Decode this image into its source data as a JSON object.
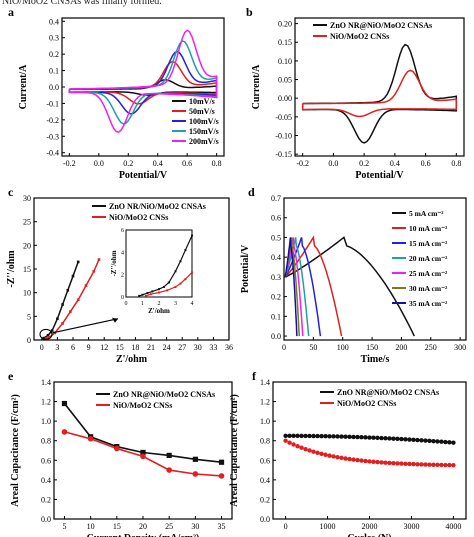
{
  "caption": "NiO/MoO2 CNSAs was finally formed.",
  "colors": {
    "black": "#111111",
    "red": "#e02020",
    "magenta": "#ee22ee",
    "teal": "#20a0a0",
    "green": "#22aa22",
    "blue": "#2222dd",
    "olive": "#7a7a1a"
  },
  "chart_data": [
    {
      "panel": "a",
      "type": "line",
      "xlabel": "Potential/V",
      "ylabel": "Current/A",
      "xlim": [
        -0.25,
        0.85
      ],
      "ylim": [
        -0.42,
        0.42
      ],
      "xticks": [
        "-0.2",
        "0.0",
        "0.2",
        "0.4",
        "0.6",
        "0.8"
      ],
      "yticks": [
        "-0.4",
        "-0.3",
        "-0.2",
        "-0.1",
        "0.0",
        "0.1",
        "0.2",
        "0.3",
        "0.4"
      ],
      "legend": "bottom-right",
      "series": [
        {
          "name": "10mV/s",
          "color": "#111111",
          "peak": 0.06,
          "amp": 0.02,
          "trough": -0.05,
          "vpk": 0.45,
          "vtr": 0.33
        },
        {
          "name": "50mV/s",
          "color": "#e02020",
          "peak": 0.17,
          "amp": 0.04,
          "trough": -0.1,
          "vpk": 0.5,
          "vtr": 0.27
        },
        {
          "name": "100mV/s",
          "color": "#2222dd",
          "peak": 0.23,
          "amp": 0.055,
          "trough": -0.16,
          "vpk": 0.53,
          "vtr": 0.22
        },
        {
          "name": "150mV/s",
          "color": "#20a0a0",
          "peak": 0.29,
          "amp": 0.07,
          "trough": -0.22,
          "vpk": 0.57,
          "vtr": 0.17
        },
        {
          "name": "200mV/s",
          "color": "#ee22ee",
          "peak": 0.35,
          "amp": 0.08,
          "trough": -0.27,
          "vpk": 0.6,
          "vtr": 0.13
        }
      ]
    },
    {
      "panel": "b",
      "type": "line",
      "xlabel": "Potential/V",
      "ylabel": "Current/A",
      "xlim": [
        -0.25,
        0.85
      ],
      "ylim": [
        -0.155,
        0.215
      ],
      "xticks": [
        "-0.2",
        "0.0",
        "0.2",
        "0.4",
        "0.6",
        "0.8"
      ],
      "yticks": [
        "-0.15",
        "-0.10",
        "-0.05",
        "0.00",
        "0.05",
        "0.10",
        "0.15",
        "0.20"
      ],
      "legend": "top-left",
      "series": [
        {
          "name": "ZnO NR@NiO/MoO2 CNSAs",
          "color": "#111111",
          "peak": 0.16,
          "amp": 0.02,
          "trough": -0.12,
          "vpk": 0.47,
          "vtr": 0.2
        },
        {
          "name": "NiO/MoO2 CNSs",
          "color": "#e02020",
          "peak": 0.09,
          "amp": 0.012,
          "trough": -0.05,
          "vpk": 0.5,
          "vtr": 0.17
        }
      ]
    },
    {
      "panel": "c",
      "type": "line",
      "xlabel": "Z'/ohm",
      "ylabel": "-Z''/ohm",
      "xlim": [
        -1.5,
        36
      ],
      "ylim": [
        0,
        30
      ],
      "xticks": [
        "0",
        "3",
        "6",
        "9",
        "12",
        "15",
        "18",
        "21",
        "24",
        "27",
        "30",
        "33",
        "36"
      ],
      "yticks": [
        "0",
        "5",
        "10",
        "15",
        "20",
        "25",
        "30"
      ],
      "legend": "top-right",
      "series": [
        {
          "name": "ZnO NR/NiO/MoO2 CNSAs",
          "color": "#111111",
          "x": [
            0.4,
            1.2,
            2.0,
            3.0,
            4.0,
            5.0,
            6.0,
            7.0
          ],
          "y": [
            0.4,
            1.0,
            2.0,
            4.5,
            7.5,
            10.5,
            13.5,
            16.5
          ]
        },
        {
          "name": "NiO/MoO2 CNSs",
          "color": "#e02020",
          "x": [
            0.8,
            1.5,
            2.5,
            4.0,
            5.5,
            7.0,
            8.5,
            10.0,
            11.0
          ],
          "y": [
            0.3,
            0.6,
            1.5,
            3.5,
            6.0,
            8.5,
            11.5,
            14.5,
            17.0
          ]
        }
      ],
      "inset": {
        "xlabel": "Z'/ohm",
        "ylabel": "-Z''/ohm",
        "xlim": [
          0,
          4
        ],
        "ylim": [
          0,
          6
        ],
        "xticks": [
          "0",
          "1",
          "2",
          "3",
          "4"
        ],
        "yticks": [
          "0",
          "2",
          "4",
          "6"
        ],
        "series": [
          {
            "color": "#111111",
            "x": [
              0.8,
              1.0,
              1.3,
              1.6,
              2.0,
              2.3,
              2.6,
              3.0,
              3.3,
              3.6,
              4.0
            ],
            "y": [
              0.1,
              0.2,
              0.35,
              0.5,
              0.7,
              0.9,
              1.3,
              2.3,
              3.2,
              4.2,
              5.5
            ]
          },
          {
            "color": "#e02020",
            "x": [
              1.2,
              1.5,
              2.0,
              2.5,
              3.0,
              3.3,
              3.6,
              4.0
            ],
            "y": [
              0.1,
              0.25,
              0.4,
              0.6,
              0.9,
              1.2,
              1.6,
              2.2
            ]
          }
        ]
      }
    },
    {
      "panel": "d",
      "type": "line",
      "xlabel": "Time/s",
      "ylabel": "Potential/V",
      "xlim": [
        0,
        310
      ],
      "ylim": [
        -0.02,
        0.7
      ],
      "xticks": [
        "0",
        "50",
        "100",
        "150",
        "200",
        "250",
        "300"
      ],
      "yticks": [
        "0.0",
        "0.1",
        "0.2",
        "0.3",
        "0.4",
        "0.5",
        "0.6",
        "0.7"
      ],
      "legend": "right",
      "series": [
        {
          "name": "5 mA cm⁻²",
          "color": "#111111",
          "tc": 100,
          "td": 120
        },
        {
          "name": "10 mA cm⁻²",
          "color": "#e02020",
          "tc": 48,
          "td": 48
        },
        {
          "name": "15 mA cm⁻²",
          "color": "#2222dd",
          "tc": 28,
          "td": 32
        },
        {
          "name": "20 mA cm⁻²",
          "color": "#20a0a0",
          "tc": 18,
          "td": 22
        },
        {
          "name": "25 mA cm⁻²",
          "color": "#ee22ee",
          "tc": 14,
          "td": 16
        },
        {
          "name": "30 mA cm⁻²",
          "color": "#7a7a1a",
          "tc": 11,
          "td": 13
        },
        {
          "name": "35 mA cm⁻²",
          "color": "#111199",
          "tc": 9,
          "td": 11
        }
      ]
    },
    {
      "panel": "e",
      "type": "line",
      "xlabel": "Current Density (mA/cm²)",
      "ylabel": "Areal Capacitance (F/cm²)",
      "xlim": [
        3,
        37
      ],
      "ylim": [
        0.0,
        1.4
      ],
      "xticks": [
        "5",
        "10",
        "15",
        "20",
        "25",
        "30",
        "35"
      ],
      "yticks": [
        "0.0",
        "0.2",
        "0.4",
        "0.6",
        "0.8",
        "1.0",
        "1.2",
        "1.4"
      ],
      "legend": "top-right",
      "x": [
        5,
        10,
        15,
        20,
        25,
        30,
        35
      ],
      "series": [
        {
          "name": "ZnO NR@NiO/MoO2 CNSAs",
          "color": "#111111",
          "marker": "square",
          "values": [
            1.18,
            0.84,
            0.74,
            0.68,
            0.65,
            0.61,
            0.58
          ]
        },
        {
          "name": "NiO/MoO2 CNSs",
          "color": "#e02020",
          "marker": "circle",
          "values": [
            0.89,
            0.82,
            0.72,
            0.64,
            0.5,
            0.46,
            0.44
          ]
        }
      ]
    },
    {
      "panel": "f",
      "type": "line",
      "xlabel": "Cycles (N)",
      "ylabel": "Areal Capacitance (F/cm²)",
      "xlim": [
        -300,
        4300
      ],
      "ylim": [
        0.0,
        1.4
      ],
      "xticks": [
        "0",
        "1000",
        "2000",
        "3000",
        "4000"
      ],
      "yticks": [
        "0.0",
        "0.2",
        "0.4",
        "0.6",
        "0.8",
        "1.0",
        "1.2",
        "1.4"
      ],
      "legend": "top-right",
      "series": [
        {
          "name": "ZnO NR@NiO/MoO2 CNSAs",
          "color": "#111111",
          "start": 0.85,
          "end": 0.78,
          "endAt": 4000
        },
        {
          "name": "NiO/MoO2 CNSs",
          "color": "#e02020",
          "start": 0.8,
          "end": 0.55,
          "endAt": 4000
        }
      ]
    }
  ]
}
